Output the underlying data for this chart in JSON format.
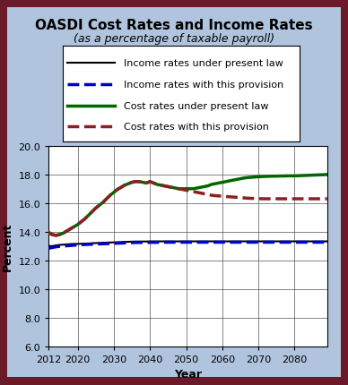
{
  "title": "OASDI Cost Rates and Income Rates",
  "subtitle": "(as a percentage of taxable payroll)",
  "xlabel": "Year",
  "ylabel": "Percent",
  "bg_color": "#b0c4de",
  "plot_bg_color": "#ffffff",
  "border_color": "#6b1a2a",
  "xlim": [
    2012,
    2089
  ],
  "ylim": [
    6.0,
    20.0
  ],
  "yticks": [
    6.0,
    8.0,
    10.0,
    12.0,
    14.0,
    16.0,
    18.0,
    20.0
  ],
  "xticks": [
    2012,
    2020,
    2030,
    2040,
    2050,
    2060,
    2070,
    2080
  ],
  "legend_labels": [
    "Income rates under present law",
    "Income rates with this provision",
    "Cost rates under present law",
    "Cost rates with this provision"
  ],
  "years": [
    2012,
    2013,
    2014,
    2015,
    2016,
    2017,
    2018,
    2019,
    2020,
    2021,
    2022,
    2023,
    2024,
    2025,
    2026,
    2027,
    2028,
    2029,
    2030,
    2031,
    2032,
    2033,
    2034,
    2035,
    2036,
    2037,
    2038,
    2039,
    2040,
    2041,
    2042,
    2043,
    2044,
    2045,
    2046,
    2047,
    2048,
    2049,
    2050,
    2051,
    2052,
    2053,
    2054,
    2055,
    2056,
    2057,
    2058,
    2059,
    2060,
    2061,
    2062,
    2063,
    2064,
    2065,
    2066,
    2067,
    2068,
    2069,
    2070,
    2071,
    2072,
    2073,
    2074,
    2075,
    2076,
    2077,
    2078,
    2079,
    2080,
    2081,
    2082,
    2083,
    2084,
    2085,
    2086,
    2087,
    2088,
    2089
  ],
  "income_present_law": [
    13.0,
    13.0,
    13.05,
    13.08,
    13.1,
    13.12,
    13.14,
    13.15,
    13.15,
    13.16,
    13.17,
    13.18,
    13.2,
    13.21,
    13.22,
    13.23,
    13.24,
    13.25,
    13.26,
    13.27,
    13.28,
    13.29,
    13.3,
    13.31,
    13.32,
    13.32,
    13.32,
    13.32,
    13.33,
    13.33,
    13.33,
    13.33,
    13.33,
    13.33,
    13.33,
    13.33,
    13.33,
    13.33,
    13.33,
    13.33,
    13.33,
    13.33,
    13.33,
    13.33,
    13.33,
    13.33,
    13.33,
    13.33,
    13.33,
    13.33,
    13.33,
    13.33,
    13.33,
    13.33,
    13.33,
    13.33,
    13.33,
    13.33,
    13.33,
    13.33,
    13.33,
    13.33,
    13.33,
    13.33,
    13.33,
    13.33,
    13.33,
    13.33,
    13.33,
    13.33,
    13.33,
    13.33,
    13.33,
    13.33,
    13.33,
    13.33,
    13.33,
    13.33
  ],
  "income_provision": [
    12.85,
    12.9,
    12.95,
    12.98,
    13.0,
    13.02,
    13.04,
    13.06,
    13.08,
    13.1,
    13.11,
    13.12,
    13.13,
    13.14,
    13.15,
    13.16,
    13.17,
    13.18,
    13.19,
    13.2,
    13.21,
    13.22,
    13.23,
    13.24,
    13.25,
    13.25,
    13.25,
    13.26,
    13.26,
    13.26,
    13.26,
    13.27,
    13.27,
    13.27,
    13.27,
    13.27,
    13.27,
    13.27,
    13.27,
    13.27,
    13.27,
    13.27,
    13.27,
    13.27,
    13.27,
    13.27,
    13.27,
    13.27,
    13.27,
    13.27,
    13.27,
    13.27,
    13.27,
    13.27,
    13.27,
    13.27,
    13.27,
    13.27,
    13.27,
    13.27,
    13.27,
    13.27,
    13.27,
    13.27,
    13.27,
    13.27,
    13.27,
    13.27,
    13.27,
    13.27,
    13.27,
    13.27,
    13.27,
    13.27,
    13.27,
    13.27,
    13.27,
    13.27
  ],
  "cost_present_law": [
    13.95,
    13.8,
    13.75,
    13.8,
    13.9,
    14.05,
    14.2,
    14.35,
    14.5,
    14.7,
    14.9,
    15.15,
    15.4,
    15.65,
    15.85,
    16.05,
    16.3,
    16.55,
    16.75,
    16.95,
    17.1,
    17.25,
    17.35,
    17.45,
    17.5,
    17.5,
    17.45,
    17.4,
    17.5,
    17.4,
    17.3,
    17.25,
    17.2,
    17.15,
    17.1,
    17.05,
    17.0,
    17.0,
    17.0,
    17.0,
    17.0,
    17.05,
    17.1,
    17.15,
    17.2,
    17.3,
    17.35,
    17.4,
    17.45,
    17.5,
    17.55,
    17.6,
    17.65,
    17.7,
    17.75,
    17.78,
    17.8,
    17.82,
    17.84,
    17.85,
    17.86,
    17.87,
    17.88,
    17.88,
    17.89,
    17.89,
    17.9,
    17.9,
    17.9,
    17.91,
    17.92,
    17.93,
    17.94,
    17.95,
    17.96,
    17.97,
    17.98,
    17.99
  ],
  "cost_provision": [
    13.95,
    13.8,
    13.75,
    13.8,
    13.9,
    14.05,
    14.2,
    14.35,
    14.5,
    14.7,
    14.9,
    15.15,
    15.4,
    15.65,
    15.85,
    16.05,
    16.3,
    16.55,
    16.75,
    16.95,
    17.1,
    17.25,
    17.35,
    17.45,
    17.5,
    17.5,
    17.45,
    17.4,
    17.5,
    17.4,
    17.3,
    17.25,
    17.2,
    17.15,
    17.1,
    17.05,
    17.0,
    16.95,
    16.9,
    16.85,
    16.8,
    16.75,
    16.7,
    16.65,
    16.6,
    16.55,
    16.52,
    16.5,
    16.48,
    16.46,
    16.44,
    16.42,
    16.4,
    16.38,
    16.36,
    16.34,
    16.33,
    16.32,
    16.31,
    16.3,
    16.3,
    16.3,
    16.3,
    16.3,
    16.3,
    16.3,
    16.3,
    16.3,
    16.3,
    16.3,
    16.3,
    16.3,
    16.3,
    16.3,
    16.3,
    16.3,
    16.3,
    16.3
  ],
  "income_present_law_color": "#000000",
  "income_provision_color": "#0000cc",
  "cost_present_law_color": "#006600",
  "cost_provision_color": "#8b2020",
  "title_fontsize": 11,
  "subtitle_fontsize": 9,
  "axis_label_fontsize": 9,
  "tick_fontsize": 8,
  "legend_fontsize": 8
}
